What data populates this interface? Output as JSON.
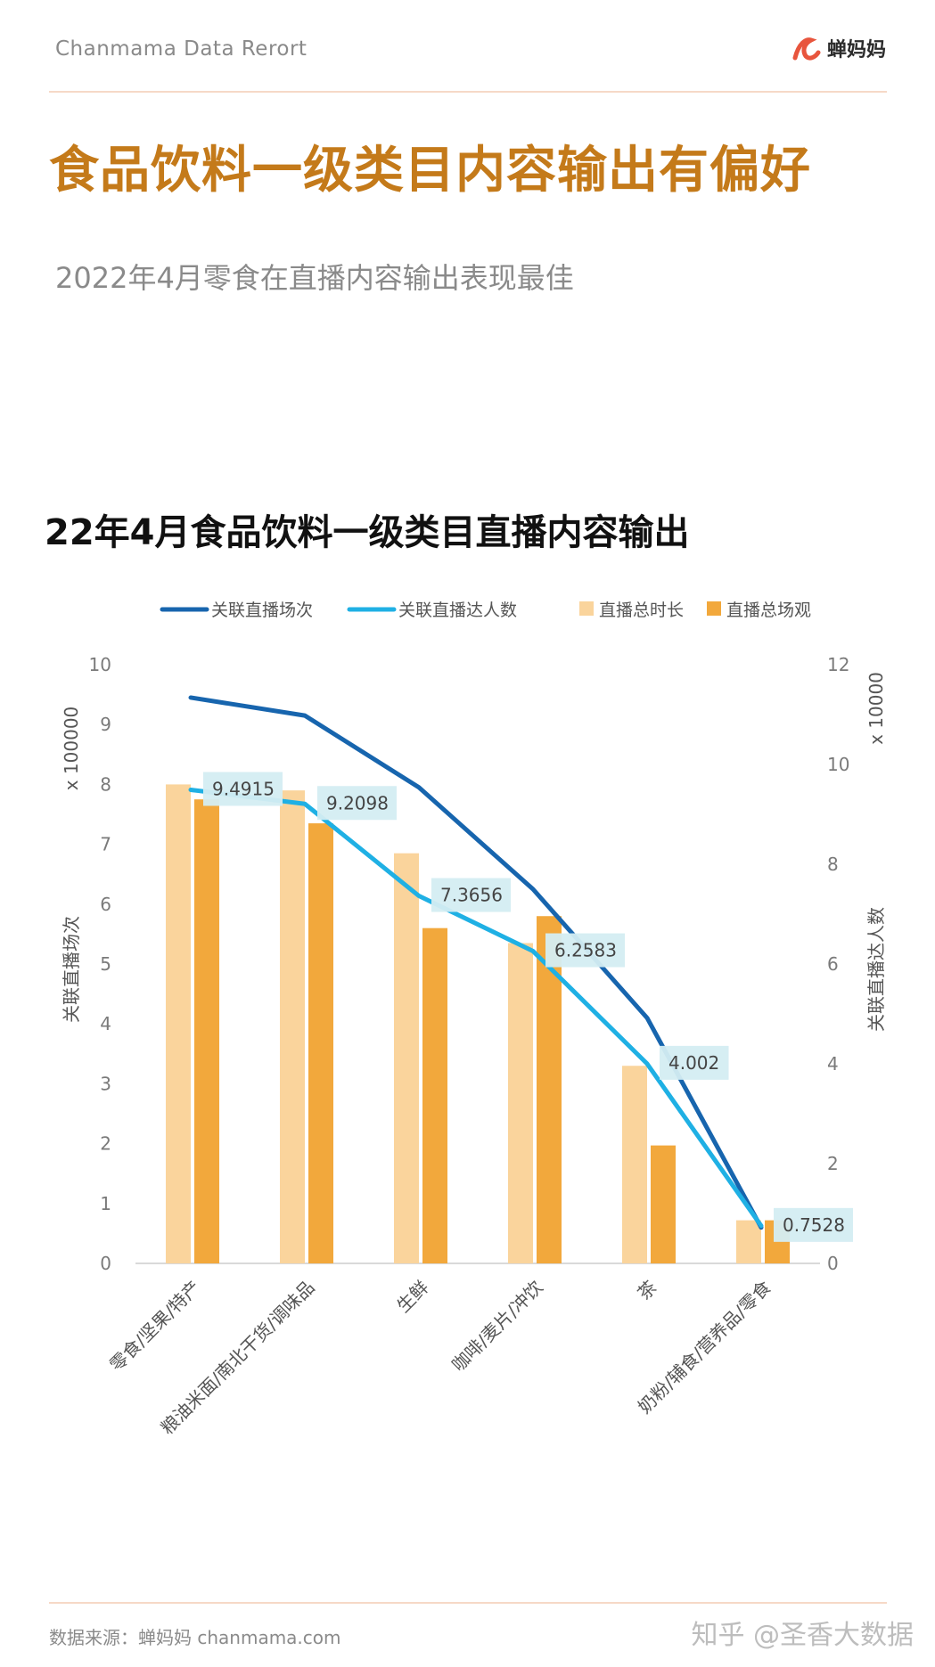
{
  "header": {
    "brand": "Chanmama Data Rerort",
    "logo_text": "蝉妈妈"
  },
  "page": {
    "title": "食品饮料一级类目内容输出有偏好",
    "subtitle": "2022年4月零食在直播内容输出表现最佳"
  },
  "footer": {
    "source": "数据来源：蝉妈妈 chanmama.com",
    "watermark": "知乎 @圣香大数据"
  },
  "colors": {
    "accent_title": "#c47a1a",
    "line_sessions": "#1765ae",
    "line_creators": "#1fb0e4",
    "bar_duration": "#fad49c",
    "bar_views": "#f2a83c",
    "logo": "#e8553d"
  },
  "chart_data": {
    "type": "bar",
    "title": "22年4月食品饮料一级类目直播内容输出",
    "categories": [
      "零食/坚果/特产",
      "粮油米面/南北干货/调味品",
      "生鲜",
      "咖啡/麦片/冲饮",
      "茶",
      "奶粉/辅食/营养品/零食"
    ],
    "legend": [
      "关联直播场次",
      "关联直播达人数",
      "直播总时长",
      "直播总场观"
    ],
    "legend_position": "top",
    "left_axis": {
      "label": "关联直播场次",
      "unit": "x 100000",
      "range": [
        0,
        10
      ],
      "ticks": [
        "0",
        "1",
        "2",
        "3",
        "4",
        "5",
        "6",
        "7",
        "8",
        "9",
        "10"
      ]
    },
    "right_axis": {
      "label": "关联直播达人数",
      "unit": "x 10000",
      "range": [
        0,
        12
      ],
      "ticks": [
        "0",
        "2",
        "4",
        "6",
        "8",
        "10",
        "12"
      ]
    },
    "series": [
      {
        "name": "直播总时长",
        "kind": "bar",
        "axis": "left",
        "values": [
          8.0,
          7.9,
          6.85,
          5.35,
          3.3,
          0.72
        ]
      },
      {
        "name": "直播总场观",
        "kind": "bar",
        "axis": "left",
        "values": [
          7.75,
          7.35,
          5.6,
          5.8,
          1.97,
          0.72
        ]
      },
      {
        "name": "关联直播场次",
        "kind": "line",
        "axis": "left",
        "values": [
          9.45,
          9.15,
          7.95,
          6.25,
          4.1,
          0.6
        ]
      },
      {
        "name": "关联直播达人数",
        "kind": "line",
        "axis": "right",
        "values": [
          9.4915,
          9.2098,
          7.3656,
          6.2583,
          4.002,
          0.7528
        ],
        "data_labels": [
          "9.4915",
          "9.2098",
          "7.3656",
          "6.2583",
          "4.002",
          "0.7528"
        ]
      }
    ],
    "grid": false
  }
}
